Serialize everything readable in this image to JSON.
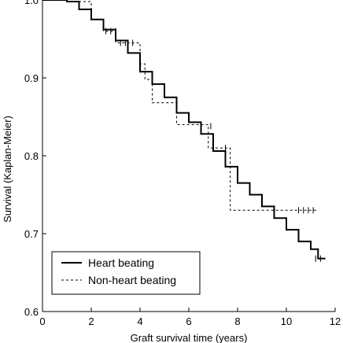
{
  "chart_data": {
    "type": "line",
    "title": "",
    "xlabel": "Graft survival time (years)",
    "ylabel": "Survival (Kaplan-Meier)",
    "xlim": [
      0,
      12
    ],
    "ylim": [
      0.6,
      1.0
    ],
    "x_ticks": [
      "0",
      "2",
      "4",
      "6",
      "8",
      "10",
      "12"
    ],
    "y_ticks": [
      "0.6",
      "0.7",
      "0.8",
      "0.9",
      "1.0"
    ],
    "legend_position": "bottom-left",
    "series": [
      {
        "name": "Heart beating",
        "style": "solid",
        "x": [
          0.0,
          1.0,
          1.5,
          2.0,
          2.5,
          3.0,
          3.5,
          4.0,
          4.5,
          5.0,
          5.5,
          6.0,
          6.5,
          7.0,
          7.5,
          8.0,
          8.5,
          9.0,
          9.5,
          10.0,
          10.5,
          11.0,
          11.3,
          11.6
        ],
        "y": [
          1.0,
          0.998,
          0.988,
          0.975,
          0.962,
          0.948,
          0.932,
          0.908,
          0.892,
          0.875,
          0.855,
          0.843,
          0.828,
          0.806,
          0.786,
          0.765,
          0.75,
          0.735,
          0.72,
          0.705,
          0.69,
          0.68,
          0.668,
          0.668
        ]
      },
      {
        "name": "Non-heart beating",
        "style": "dashed",
        "x": [
          0.0,
          1.0,
          2.0,
          2.5,
          3.0,
          3.5,
          4.0,
          4.2,
          4.5,
          5.5,
          6.8,
          7.5,
          7.7,
          8.5,
          10.0,
          11.3
        ],
        "y": [
          1.0,
          0.998,
          0.975,
          0.96,
          0.945,
          0.945,
          0.918,
          0.898,
          0.868,
          0.84,
          0.81,
          0.81,
          0.73,
          0.73,
          0.73,
          0.73
        ]
      }
    ],
    "censor_marks": [
      {
        "x": [
          2.6,
          2.8,
          3.0,
          3.2,
          3.4,
          3.5,
          3.7,
          6.9,
          7.5,
          11.2,
          11.4
        ],
        "y": [
          0.96,
          0.96,
          0.96,
          0.945,
          0.945,
          0.945,
          0.945,
          0.838,
          0.81,
          0.668,
          0.668
        ]
      },
      {
        "x": [
          10.5,
          10.7,
          10.9,
          11.1
        ],
        "y": [
          0.73,
          0.73,
          0.73,
          0.73
        ]
      }
    ]
  }
}
